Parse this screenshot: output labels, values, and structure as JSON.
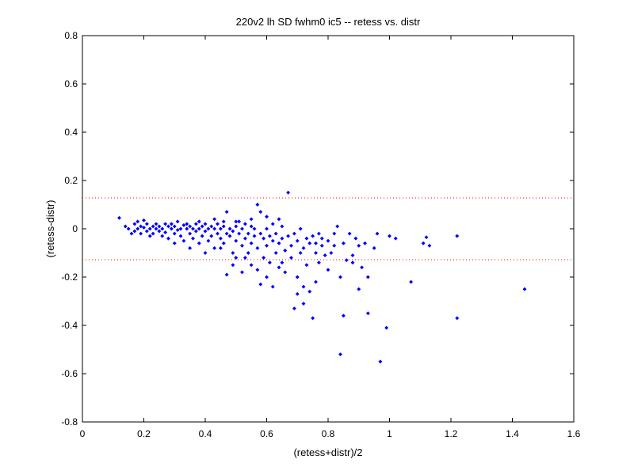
{
  "chart_data": {
    "type": "scatter",
    "title": "220v2 lh SD fwhm0 ic5 -- retess vs. distr",
    "xlabel": "(retess+distr)/2",
    "ylabel": "(retess-distr)",
    "xlim": [
      0,
      1.6
    ],
    "ylim": [
      -0.8,
      0.8
    ],
    "xticks": [
      0,
      0.2,
      0.4,
      0.6,
      0.8,
      1,
      1.2,
      1.4,
      1.6
    ],
    "yticks": [
      -0.8,
      -0.6,
      -0.4,
      -0.2,
      0,
      0.2,
      0.4,
      0.6,
      0.8
    ],
    "xtick_labels": [
      "0",
      "0.2",
      "0.4",
      "0.6",
      "0.8",
      "1",
      "1.2",
      "1.4",
      "1.6"
    ],
    "ytick_labels": [
      "-0.8",
      "-0.6",
      "-0.4",
      "-0.2",
      "0",
      "0.2",
      "0.4",
      "0.6",
      "0.8"
    ],
    "grid": false,
    "legend": "none",
    "reference_lines": [
      {
        "y": 0.128,
        "style": "dotted",
        "color": "#ff0000"
      },
      {
        "y": -0.128,
        "style": "dotted",
        "color": "#ff0000"
      }
    ],
    "marker_color": "#0000ff",
    "series": [
      {
        "points": [
          [
            0.12,
            0.045
          ],
          [
            0.14,
            0.01
          ],
          [
            0.15,
            0.0
          ],
          [
            0.16,
            -0.02
          ],
          [
            0.17,
            0.02
          ],
          [
            0.17,
            -0.01
          ],
          [
            0.18,
            0.0
          ],
          [
            0.18,
            0.03
          ],
          [
            0.19,
            0.01
          ],
          [
            0.19,
            -0.02
          ],
          [
            0.2,
            0.035
          ],
          [
            0.2,
            0.005
          ],
          [
            0.21,
            -0.01
          ],
          [
            0.21,
            0.02
          ],
          [
            0.22,
            0.0
          ],
          [
            0.22,
            -0.03
          ],
          [
            0.23,
            0.01
          ],
          [
            0.23,
            -0.02
          ],
          [
            0.24,
            0.0
          ],
          [
            0.24,
            0.02
          ],
          [
            0.25,
            -0.01
          ],
          [
            0.25,
            0.01
          ],
          [
            0.26,
            -0.03
          ],
          [
            0.26,
            0.0
          ],
          [
            0.27,
            0.02
          ],
          [
            0.27,
            -0.015
          ],
          [
            0.28,
            0.01
          ],
          [
            0.28,
            -0.04
          ],
          [
            0.29,
            0.0
          ],
          [
            0.29,
            0.02
          ],
          [
            0.3,
            -0.02
          ],
          [
            0.3,
            0.01
          ],
          [
            0.31,
            -0.005
          ],
          [
            0.31,
            0.03
          ],
          [
            0.32,
            -0.03
          ],
          [
            0.32,
            0.0
          ],
          [
            0.33,
            0.015
          ],
          [
            0.33,
            -0.05
          ],
          [
            0.34,
            0.0
          ],
          [
            0.34,
            0.02
          ],
          [
            0.35,
            -0.02
          ],
          [
            0.35,
            0.01
          ],
          [
            0.36,
            -0.04
          ],
          [
            0.36,
            0.0
          ],
          [
            0.37,
            0.02
          ],
          [
            0.37,
            -0.01
          ],
          [
            0.38,
            0.0
          ],
          [
            0.38,
            -0.06
          ],
          [
            0.39,
            0.01
          ],
          [
            0.39,
            -0.03
          ],
          [
            0.4,
            0.02
          ],
          [
            0.4,
            -0.01
          ],
          [
            0.41,
            -0.05
          ],
          [
            0.41,
            0.0
          ],
          [
            0.42,
            0.01
          ],
          [
            0.42,
            -0.03
          ],
          [
            0.43,
            0.0
          ],
          [
            0.43,
            -0.08
          ],
          [
            0.44,
            0.02
          ],
          [
            0.44,
            -0.02
          ],
          [
            0.45,
            0.0
          ],
          [
            0.45,
            -0.04
          ],
          [
            0.46,
            0.01
          ],
          [
            0.46,
            -0.06
          ],
          [
            0.47,
            -0.02
          ],
          [
            0.47,
            0.07
          ],
          [
            0.48,
            0.0
          ],
          [
            0.48,
            -0.03
          ],
          [
            0.49,
            -0.01
          ],
          [
            0.49,
            -0.1
          ],
          [
            0.5,
            0.01
          ],
          [
            0.5,
            -0.05
          ],
          [
            0.51,
            -0.02
          ],
          [
            0.51,
            0.03
          ],
          [
            0.52,
            -0.07
          ],
          [
            0.52,
            0.0
          ],
          [
            0.53,
            -0.04
          ],
          [
            0.53,
            0.02
          ],
          [
            0.54,
            -0.1
          ],
          [
            0.54,
            -0.02
          ],
          [
            0.55,
            0.01
          ],
          [
            0.55,
            -0.06
          ],
          [
            0.56,
            -0.03
          ],
          [
            0.56,
            0.0
          ],
          [
            0.57,
            0.1
          ],
          [
            0.57,
            -0.08
          ],
          [
            0.58,
            -0.02
          ],
          [
            0.58,
            0.07
          ],
          [
            0.59,
            -0.12
          ],
          [
            0.59,
            -0.04
          ],
          [
            0.6,
            0.0
          ],
          [
            0.6,
            -0.07
          ],
          [
            0.61,
            -0.03
          ],
          [
            0.61,
            -0.14
          ],
          [
            0.62,
            -0.05
          ],
          [
            0.62,
            0.02
          ],
          [
            0.63,
            -0.1
          ],
          [
            0.63,
            -0.02
          ],
          [
            0.64,
            -0.06
          ],
          [
            0.64,
            -0.16
          ],
          [
            0.65,
            -0.04
          ],
          [
            0.65,
            0.01
          ],
          [
            0.66,
            -0.09
          ],
          [
            0.66,
            -0.18
          ],
          [
            0.67,
            -0.03
          ],
          [
            0.67,
            0.15
          ],
          [
            0.68,
            -0.07
          ],
          [
            0.68,
            -0.12
          ],
          [
            0.69,
            -0.02
          ],
          [
            0.69,
            -0.33
          ],
          [
            0.7,
            -0.05
          ],
          [
            0.7,
            -0.2
          ],
          [
            0.71,
            -0.1
          ],
          [
            0.71,
            0.0
          ],
          [
            0.72,
            -0.08
          ],
          [
            0.72,
            -0.24
          ],
          [
            0.73,
            -0.04
          ],
          [
            0.73,
            -0.15
          ],
          [
            0.74,
            -0.06
          ],
          [
            0.74,
            -0.26
          ],
          [
            0.75,
            -0.03
          ],
          [
            0.75,
            -0.37
          ],
          [
            0.76,
            -0.1
          ],
          [
            0.76,
            -0.22
          ],
          [
            0.77,
            -0.02
          ],
          [
            0.77,
            -0.14
          ],
          [
            0.78,
            -0.07
          ],
          [
            0.78,
            -0.04
          ],
          [
            0.79,
            -0.11
          ],
          [
            0.8,
            -0.05
          ],
          [
            0.81,
            -0.1
          ],
          [
            0.82,
            -0.02
          ],
          [
            0.82,
            -0.07
          ],
          [
            0.83,
            0.01
          ],
          [
            0.84,
            -0.52
          ],
          [
            0.85,
            -0.06
          ],
          [
            0.85,
            -0.36
          ],
          [
            0.86,
            -0.13
          ],
          [
            0.87,
            -0.02
          ],
          [
            0.88,
            -0.11
          ],
          [
            0.89,
            -0.04
          ],
          [
            0.9,
            -0.07
          ],
          [
            0.91,
            -0.16
          ],
          [
            0.92,
            -0.06
          ],
          [
            0.93,
            -0.35
          ],
          [
            0.95,
            -0.08
          ],
          [
            0.96,
            -0.02
          ],
          [
            0.97,
            -0.55
          ],
          [
            0.99,
            -0.41
          ],
          [
            1.0,
            -0.03
          ],
          [
            1.02,
            -0.04
          ],
          [
            1.07,
            -0.22
          ],
          [
            1.11,
            -0.06
          ],
          [
            1.12,
            -0.035
          ],
          [
            1.13,
            -0.07
          ],
          [
            1.22,
            -0.03
          ],
          [
            1.22,
            -0.37
          ],
          [
            1.44,
            -0.25
          ],
          [
            0.3,
            -0.06
          ],
          [
            0.35,
            -0.08
          ],
          [
            0.4,
            -0.1
          ],
          [
            0.45,
            -0.08
          ],
          [
            0.5,
            -0.12
          ],
          [
            0.52,
            -0.18
          ],
          [
            0.55,
            -0.15
          ],
          [
            0.6,
            -0.2
          ],
          [
            0.62,
            -0.24
          ],
          [
            0.65,
            -0.14
          ],
          [
            0.7,
            -0.27
          ],
          [
            0.72,
            -0.31
          ],
          [
            0.76,
            -0.06
          ],
          [
            0.8,
            -0.17
          ],
          [
            0.84,
            -0.2
          ],
          [
            0.88,
            -0.14
          ],
          [
            0.9,
            -0.25
          ],
          [
            0.93,
            -0.2
          ],
          [
            0.38,
            0.03
          ],
          [
            0.43,
            0.04
          ],
          [
            0.46,
            0.03
          ],
          [
            0.5,
            0.03
          ],
          [
            0.55,
            0.04
          ],
          [
            0.6,
            0.05
          ],
          [
            0.64,
            0.04
          ],
          [
            0.47,
            -0.19
          ],
          [
            0.49,
            -0.15
          ],
          [
            0.53,
            -0.12
          ],
          [
            0.57,
            -0.17
          ],
          [
            0.58,
            -0.23
          ]
        ]
      }
    ]
  }
}
